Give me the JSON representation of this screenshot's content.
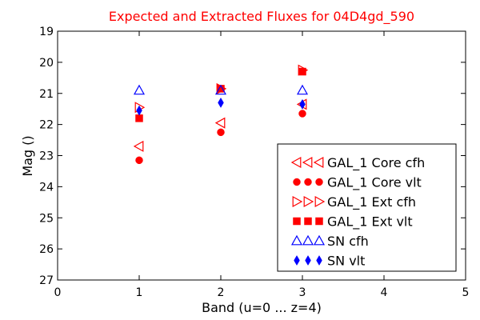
{
  "chart_data": {
    "type": "scatter",
    "title": "Expected and Extracted Fluxes for 04D4gd_590",
    "title_color": "#ff0000",
    "xlabel": "Band (u=0 ... z=4)",
    "ylabel": "Mag ()",
    "xlim": [
      0,
      5
    ],
    "ylim": [
      19,
      27
    ],
    "y_inverted": true,
    "x_ticks": [
      0,
      1,
      2,
      3,
      4,
      5
    ],
    "y_ticks": [
      19,
      20,
      21,
      22,
      23,
      24,
      25,
      26,
      27
    ],
    "x_tick_labels": [
      "0",
      "1",
      "2",
      "3",
      "4",
      "5"
    ],
    "y_tick_labels": [
      "19",
      "20",
      "21",
      "22",
      "23",
      "24",
      "25",
      "26",
      "27"
    ],
    "legend_position": "lower-right",
    "series": [
      {
        "name": "GAL_1 Core cfh",
        "marker": "triangle-left",
        "filled": false,
        "color": "#ff0000",
        "x": [
          1,
          2,
          3
        ],
        "y": [
          22.7,
          21.95,
          21.35
        ]
      },
      {
        "name": "GAL_1 Core vlt",
        "marker": "circle",
        "filled": true,
        "color": "#ff0000",
        "x": [
          1,
          2,
          3
        ],
        "y": [
          23.15,
          22.25,
          21.65
        ]
      },
      {
        "name": "GAL_1 Ext cfh",
        "marker": "triangle-right",
        "filled": false,
        "color": "#ff0000",
        "x": [
          1,
          2,
          3
        ],
        "y": [
          21.45,
          20.85,
          20.25
        ]
      },
      {
        "name": "GAL_1 Ext vlt",
        "marker": "square",
        "filled": true,
        "color": "#ff0000",
        "x": [
          1,
          2,
          3
        ],
        "y": [
          21.8,
          20.85,
          20.3
        ]
      },
      {
        "name": "SN cfh",
        "marker": "triangle-up",
        "filled": false,
        "color": "#0000ff",
        "x": [
          1,
          2,
          3
        ],
        "y": [
          20.9,
          20.9,
          20.9
        ]
      },
      {
        "name": "SN vlt",
        "marker": "diamond",
        "filled": true,
        "color": "#0000ff",
        "x": [
          1,
          2,
          3
        ],
        "y": [
          21.55,
          21.3,
          21.35
        ]
      }
    ]
  }
}
